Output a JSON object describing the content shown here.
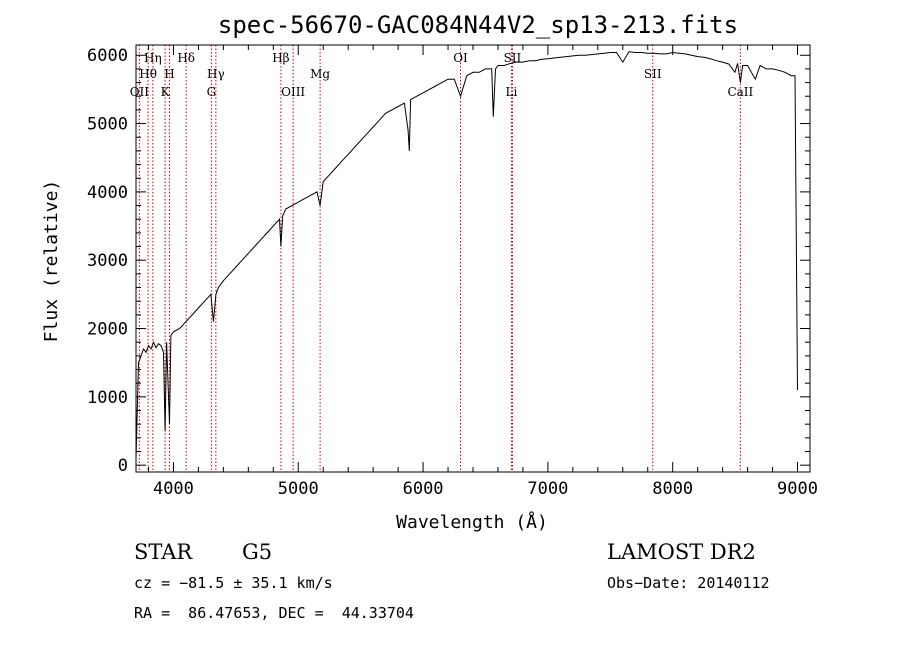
{
  "chart_data": {
    "type": "line",
    "title": "spec-56670-GAC084N44V2_sp13-213.fits",
    "xlabel": "Wavelength (Å)",
    "ylabel": "Flux (relative)",
    "xlim": [
      3700,
      9100
    ],
    "ylim": [
      -100,
      6150
    ],
    "xticks": [
      4000,
      5000,
      6000,
      7000,
      8000,
      9000
    ],
    "yticks": [
      0,
      1000,
      2000,
      3000,
      4000,
      5000,
      6000
    ],
    "grid": false,
    "line_color": "#000000",
    "marker_color": "#cc0000",
    "series": [
      {
        "x": [
          3700,
          3720,
          3740,
          3760,
          3780,
          3800,
          3820,
          3840,
          3860,
          3880,
          3900,
          3920,
          3933,
          3945,
          3968,
          3980,
          4000,
          4050,
          4100,
          4150,
          4200,
          4250,
          4300,
          4320,
          4340,
          4360,
          4400,
          4450,
          4500,
          4550,
          4600,
          4650,
          4700,
          4750,
          4800,
          4850,
          4861,
          4875,
          4900,
          4950,
          5000,
          5050,
          5100,
          5150,
          5175,
          5200,
          5250,
          5300,
          5350,
          5400,
          5450,
          5500,
          5550,
          5600,
          5650,
          5700,
          5750,
          5800,
          5850,
          5880,
          5890,
          5900,
          5950,
          6000,
          6050,
          6100,
          6150,
          6200,
          6250,
          6300,
          6350,
          6400,
          6450,
          6500,
          6550,
          6563,
          6580,
          6600,
          6650,
          6700,
          6750,
          6800,
          6850,
          6900,
          6950,
          7000,
          7050,
          7100,
          7150,
          7200,
          7250,
          7300,
          7350,
          7400,
          7450,
          7500,
          7550,
          7600,
          7650,
          7700,
          7750,
          7800,
          7850,
          7900,
          7950,
          8000,
          8050,
          8100,
          8150,
          8200,
          8250,
          8300,
          8350,
          8400,
          8450,
          8498,
          8520,
          8542,
          8560,
          8600,
          8662,
          8700,
          8750,
          8800,
          8850,
          8900,
          8950,
          8980,
          9000
        ],
        "y": [
          100,
          1500,
          1600,
          1700,
          1650,
          1750,
          1700,
          1800,
          1720,
          1780,
          1750,
          1650,
          500,
          1800,
          600,
          1900,
          1950,
          2000,
          2100,
          2200,
          2300,
          2400,
          2500,
          2100,
          2500,
          2600,
          2700,
          2800,
          2900,
          3000,
          3100,
          3200,
          3300,
          3400,
          3500,
          3600,
          3200,
          3650,
          3750,
          3800,
          3850,
          3900,
          3950,
          4000,
          3800,
          4150,
          4250,
          4350,
          4450,
          4550,
          4650,
          4750,
          4850,
          4950,
          5050,
          5150,
          5200,
          5250,
          5300,
          4900,
          4600,
          5350,
          5400,
          5450,
          5500,
          5550,
          5600,
          5650,
          5650,
          5400,
          5700,
          5750,
          5750,
          5800,
          5800,
          5100,
          5800,
          5850,
          5850,
          5880,
          5900,
          5900,
          5920,
          5920,
          5940,
          5950,
          5960,
          5970,
          5980,
          5990,
          6000,
          6000,
          6010,
          6020,
          6030,
          6040,
          6040,
          5900,
          6050,
          6040,
          6040,
          6030,
          6030,
          6020,
          6020,
          6040,
          6030,
          6020,
          6000,
          5980,
          5970,
          5950,
          5920,
          5900,
          5870,
          5750,
          5880,
          5600,
          5850,
          5850,
          5650,
          5850,
          5800,
          5800,
          5780,
          5750,
          5700,
          5700,
          1100
        ]
      }
    ],
    "line_markers": [
      {
        "label": "Hη",
        "x": 3835,
        "row": 0
      },
      {
        "label": "Hθ",
        "x": 3797,
        "row": 1
      },
      {
        "label": "OII",
        "x": 3727,
        "row": 2
      },
      {
        "label": "Hδ",
        "x": 4102,
        "row": 0
      },
      {
        "label": "H",
        "x": 3968,
        "row": 1
      },
      {
        "label": "K",
        "x": 3933,
        "row": 2
      },
      {
        "label": "Hγ",
        "x": 4340,
        "row": 1
      },
      {
        "label": "G",
        "x": 4304,
        "row": 2
      },
      {
        "label": "Hβ",
        "x": 4861,
        "row": 0
      },
      {
        "label": "OIII",
        "x": 4959,
        "row": 2
      },
      {
        "label": "Mg",
        "x": 5175,
        "row": 1
      },
      {
        "label": "OI",
        "x": 6300,
        "row": 0
      },
      {
        "label": "SII",
        "x": 6716,
        "row": 0
      },
      {
        "label": "Li",
        "x": 6708,
        "row": 2
      },
      {
        "label": "SII",
        "x": 7840,
        "row": 1
      },
      {
        "label": "CaII",
        "x": 8542,
        "row": 2
      }
    ]
  },
  "info": {
    "class_label": "STAR",
    "subclass": "G5",
    "survey": "LAMOST DR2",
    "redshift_line": "cz = −81.5 ± 35.1 km/s",
    "obs_date_line": "Obs−Date: 20140112",
    "coords_line": "RA =  86.47653, DEC =  44.33704"
  }
}
